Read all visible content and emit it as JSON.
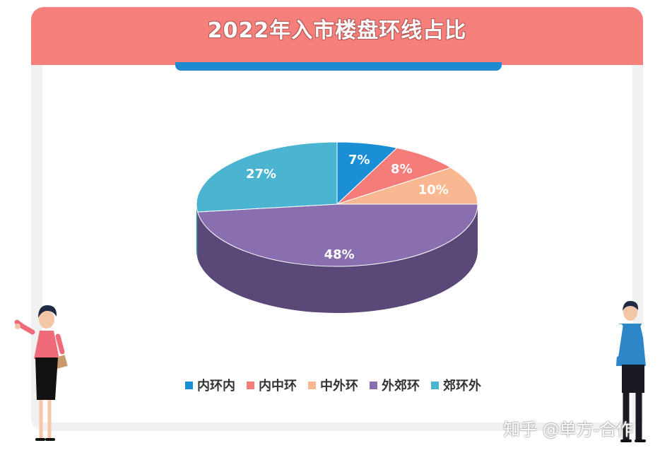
{
  "title": "2022年入市楼盘环线占比",
  "watermark": "知乎 @单方-合作",
  "colors": {
    "header": "#f57f7b",
    "accent_bar": "#1e8ad1"
  },
  "chart_data": {
    "type": "pie",
    "title": "2022年入市楼盘环线占比",
    "categories": [
      "内环内",
      "内中环",
      "中外环",
      "外郊环",
      "郊环外"
    ],
    "values": [
      7,
      8,
      10,
      48,
      27
    ],
    "unit": "%",
    "labels": [
      "7%",
      "8%",
      "10%",
      "48%",
      "27%"
    ],
    "colors": [
      "#1a8fd6",
      "#f47c79",
      "#f9b891",
      "#8a6fb0",
      "#4ab4d1"
    ],
    "side_colors": [
      "#126aa0",
      "#b85a57",
      "#c58d6c",
      "#5a4878",
      "#327f95"
    ],
    "style": "3d",
    "legend_position": "bottom"
  }
}
